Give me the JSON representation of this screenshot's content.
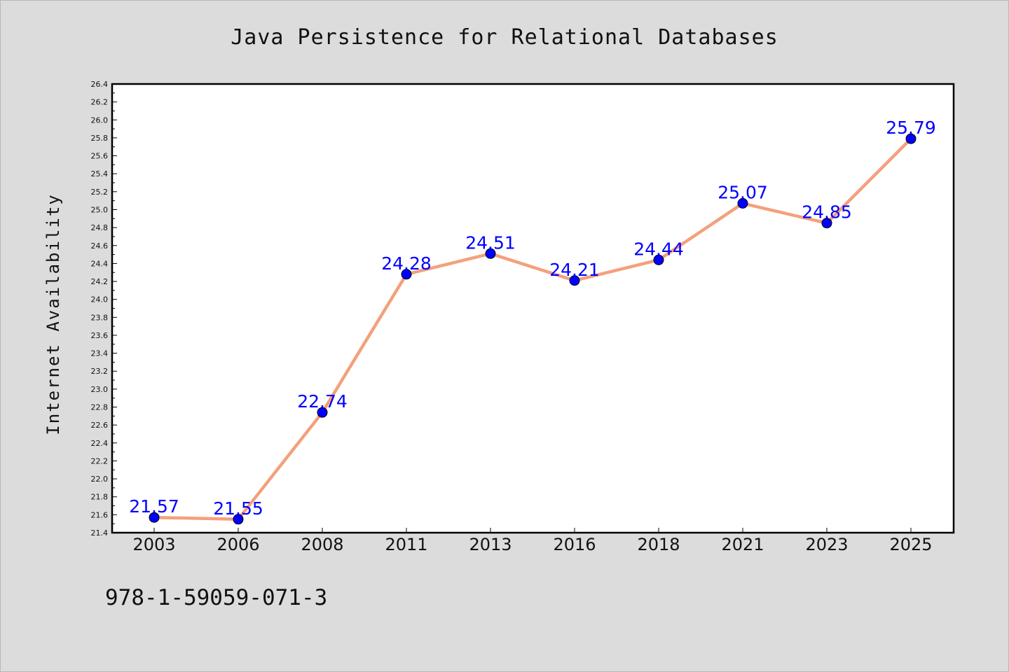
{
  "chart_data": {
    "type": "line",
    "title": "Java Persistence for Relational Databases",
    "xlabel": "",
    "ylabel": "Internet Availability",
    "categories": [
      "2003",
      "2006",
      "2008",
      "2011",
      "2013",
      "2016",
      "2018",
      "2021",
      "2023",
      "2025"
    ],
    "series": [
      {
        "values": [
          21.57,
          21.55,
          22.74,
          24.28,
          24.51,
          24.21,
          24.44,
          25.07,
          24.85,
          25.79
        ],
        "data_labels": [
          "21.57",
          "21.55",
          "22.74",
          "24.28",
          "24.51",
          "24.21",
          "24.44",
          "25.07",
          "24.85",
          "25.79"
        ],
        "line_color": "#f4a07c",
        "marker_color": "#0000ff"
      }
    ],
    "ylim": [
      21.4,
      26.4
    ],
    "yticks": [
      "21.4",
      "21.6",
      "21.8",
      "22.0",
      "22.2",
      "22.4",
      "22.6",
      "22.8",
      "23.0",
      "23.2",
      "23.4",
      "23.6",
      "23.8",
      "24.0",
      "24.2",
      "24.4",
      "24.6",
      "24.8",
      "25.0",
      "25.2",
      "25.4",
      "25.6",
      "25.8",
      "26.0",
      "26.2",
      "26.4"
    ],
    "grid": false,
    "legend": "none"
  },
  "footnote": "978-1-59059-071-3"
}
